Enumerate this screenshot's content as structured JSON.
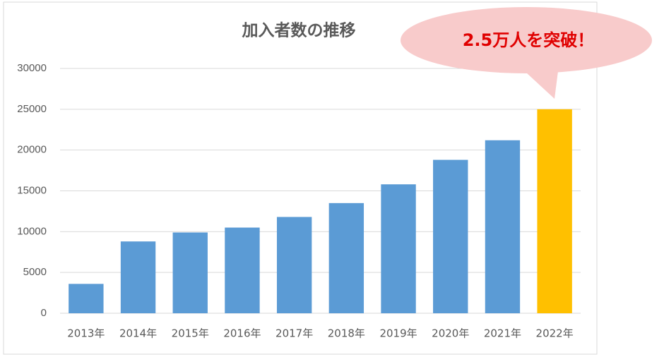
{
  "chart_data": {
    "type": "bar",
    "title": "加入者数の推移",
    "categories": [
      "2013年",
      "2014年",
      "2015年",
      "2016年",
      "2017年",
      "2018年",
      "2019年",
      "2020年",
      "2021年",
      "2022年"
    ],
    "values": [
      3600,
      8800,
      9900,
      10500,
      11800,
      13500,
      15800,
      18800,
      21200,
      25000
    ],
    "colors": [
      "#5b9bd5",
      "#5b9bd5",
      "#5b9bd5",
      "#5b9bd5",
      "#5b9bd5",
      "#5b9bd5",
      "#5b9bd5",
      "#5b9bd5",
      "#5b9bd5",
      "#ffc000"
    ],
    "ylim": [
      0,
      30000
    ],
    "yticks": [
      0,
      5000,
      10000,
      15000,
      20000,
      25000,
      30000
    ],
    "grid": true,
    "annotation": "2.5万人を突破！"
  }
}
